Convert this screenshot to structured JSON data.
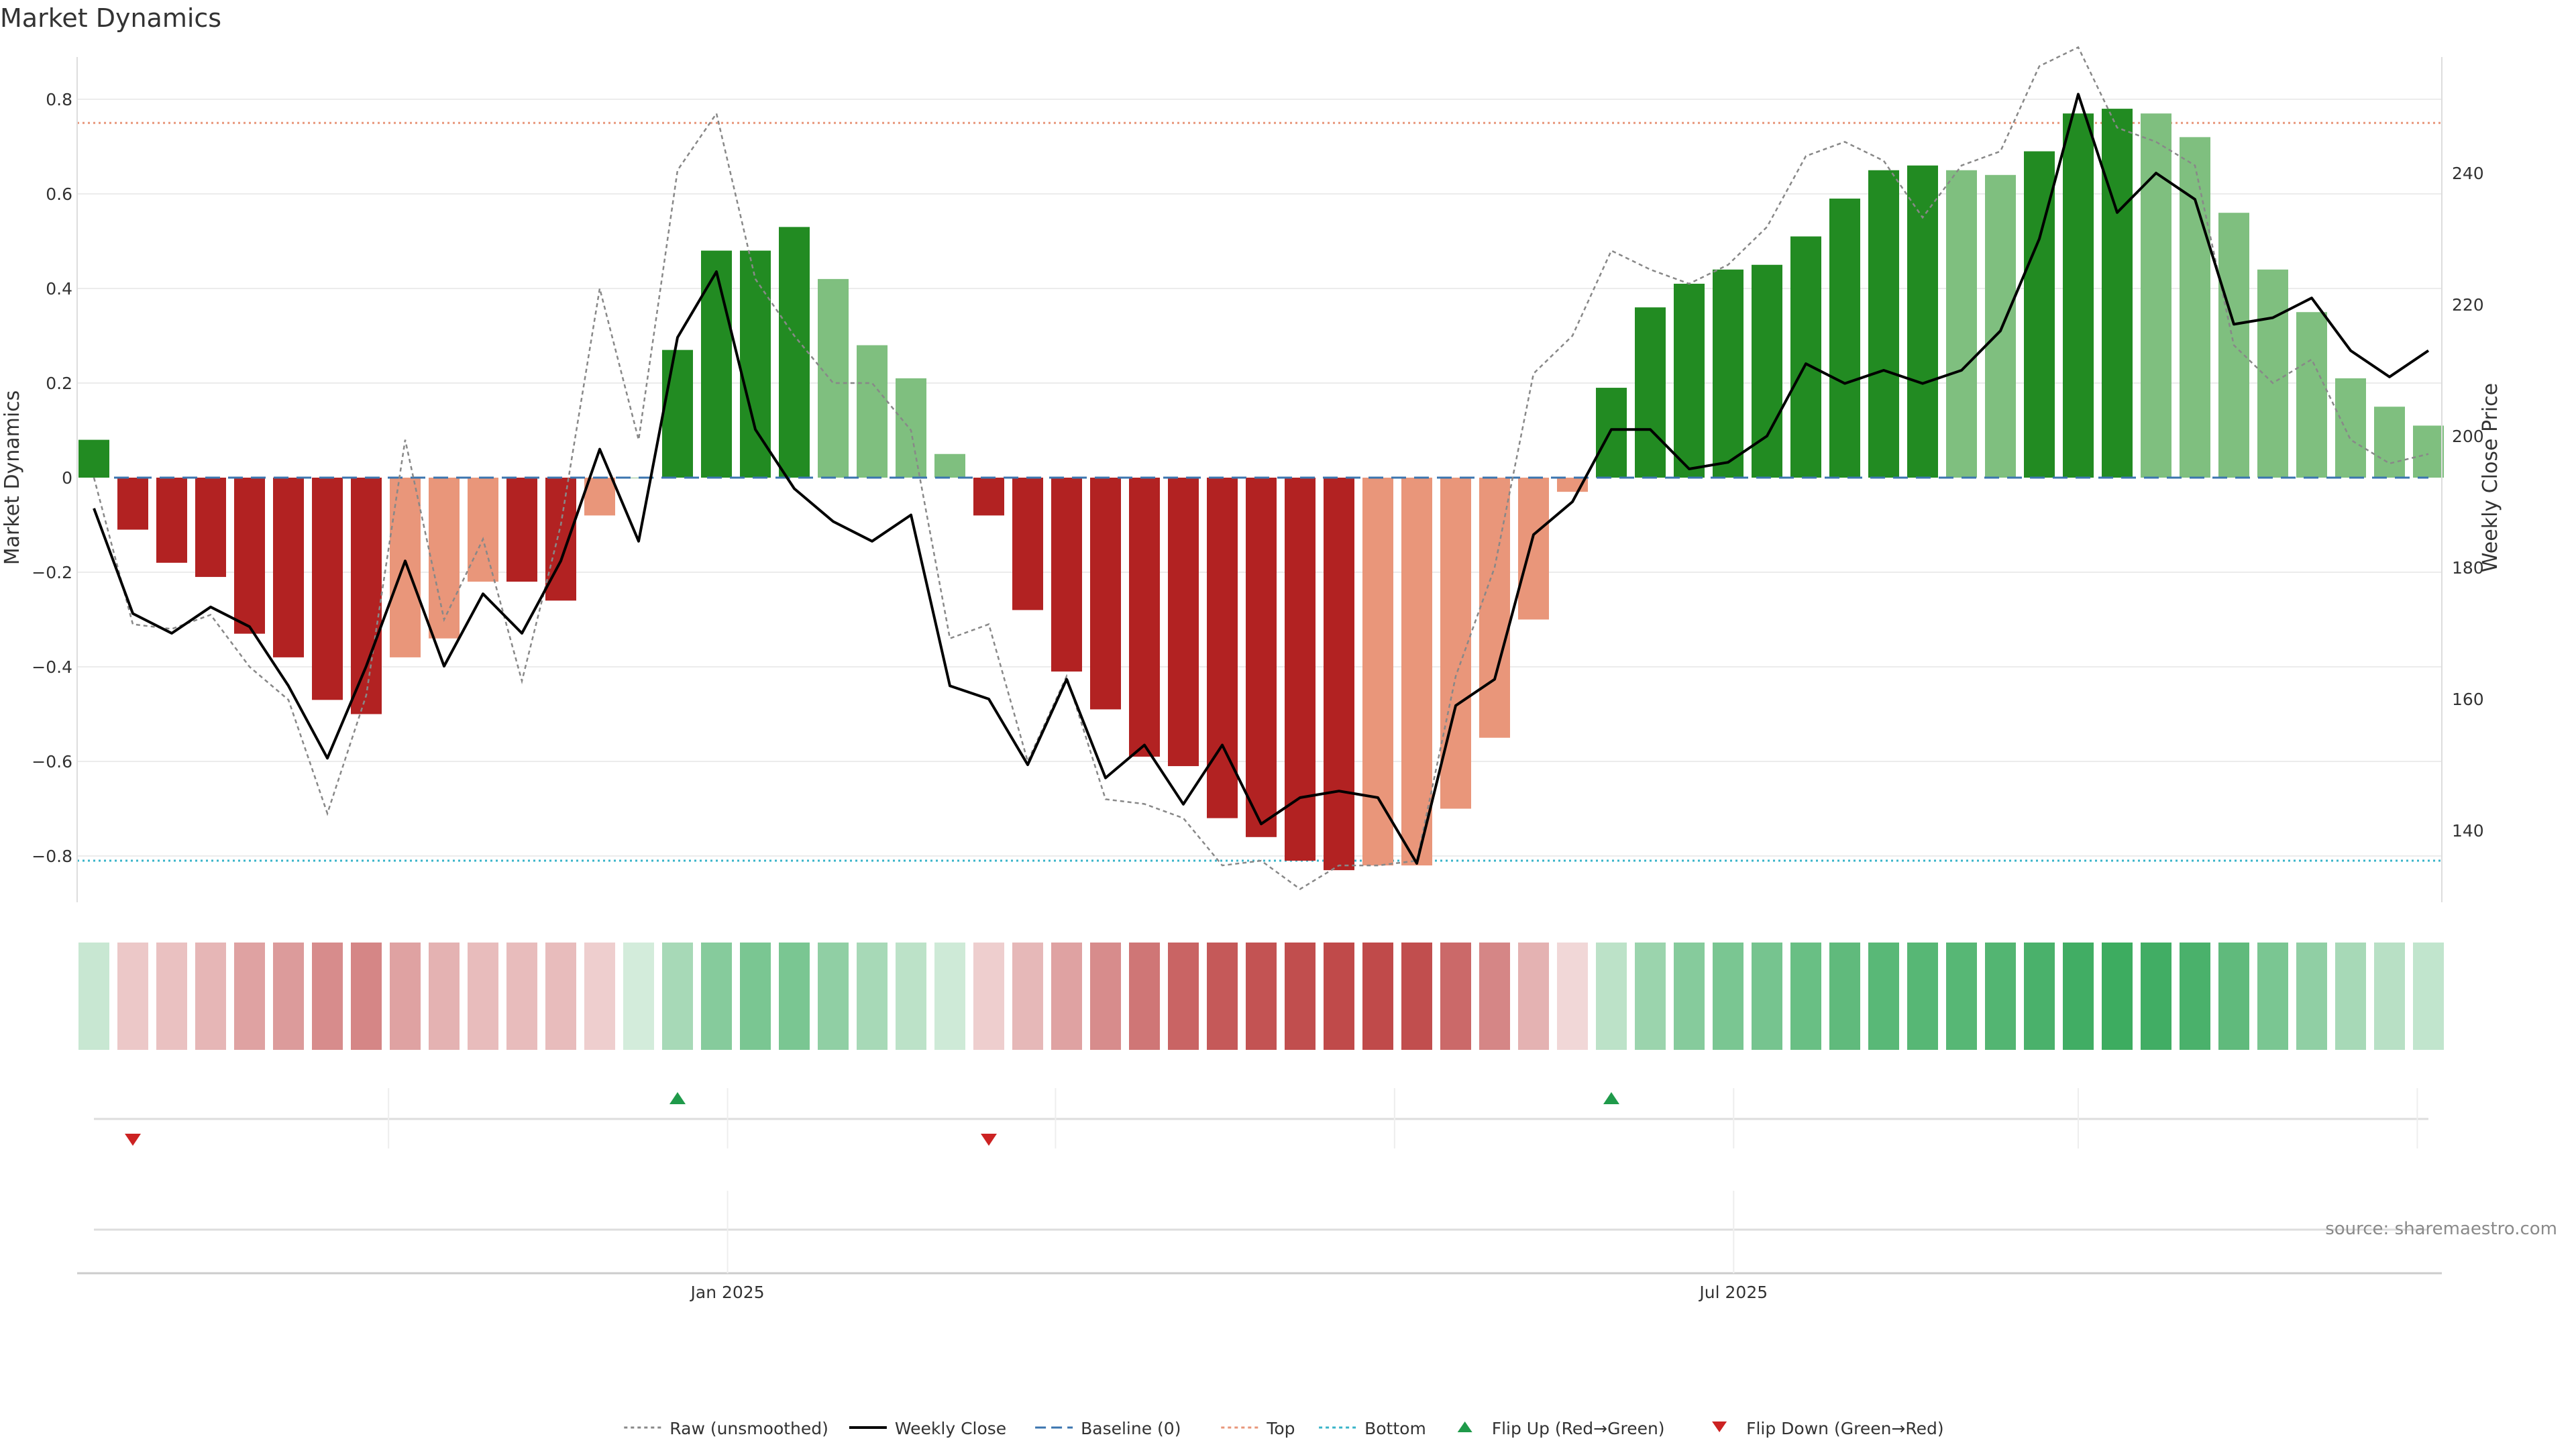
{
  "chart_data": {
    "type": "bar",
    "title": "Market Dynamics",
    "ylabel_left": "Market Dynamics",
    "ylabel_right": "Weekly Close Price",
    "ylim_left": [
      -0.9,
      0.9
    ],
    "ylim_right": [
      132,
      256
    ],
    "yticks_left": [
      -0.8,
      -0.6,
      -0.4,
      -0.2,
      0,
      0.2,
      0.4,
      0.6,
      0.8
    ],
    "yticks_left_labels": [
      "−0.8",
      "−0.6",
      "−0.4",
      "−0.2",
      "0",
      "0.2",
      "0.4",
      "0.6",
      "0.8"
    ],
    "yticks_right": [
      140,
      160,
      180,
      200,
      220,
      240
    ],
    "yticks_right_labels": [
      "140",
      "160",
      "180",
      "200",
      "220",
      "240"
    ],
    "x_start": "2024-09-09",
    "x_step_days": 7,
    "xticks": [
      {
        "date": "2025-01-01",
        "label": "Jan 2025"
      },
      {
        "date": "2025-07-01",
        "label": "Jul 2025"
      }
    ],
    "minor_gridlines_dates": [
      "2024-11-01",
      "2025-01-01",
      "2025-03-01",
      "2025-05-01",
      "2025-07-01",
      "2025-09-01",
      "2025-11-01"
    ],
    "top_level": 0.75,
    "bottom_level": -0.81,
    "baseline": 0,
    "dynamics": [
      0.08,
      -0.11,
      -0.18,
      -0.21,
      -0.33,
      -0.38,
      -0.47,
      -0.5,
      -0.38,
      -0.34,
      -0.22,
      -0.22,
      -0.26,
      -0.08,
      0,
      0.27,
      0.48,
      0.48,
      0.53,
      0.42,
      0.28,
      0.21,
      0.05,
      -0.08,
      -0.28,
      -0.41,
      -0.49,
      -0.59,
      -0.61,
      -0.72,
      -0.76,
      -0.81,
      -0.83,
      -0.82,
      -0.82,
      -0.7,
      -0.55,
      -0.3,
      -0.03,
      0.19,
      0.36,
      0.41,
      0.44,
      0.45,
      0.51,
      0.59,
      0.65,
      0.66,
      0.65,
      0.64,
      0.69,
      0.77,
      0.78,
      0.77,
      0.72,
      0.56,
      0.44,
      0.35,
      0.21,
      0.15,
      0.11
    ],
    "bar_shade": [
      "dark",
      "dark",
      "dark",
      "dark",
      "dark",
      "dark",
      "dark",
      "dark",
      "light",
      "light",
      "light",
      "dark",
      "dark",
      "light",
      "dark",
      "dark",
      "dark",
      "dark",
      "dark",
      "light",
      "light",
      "light",
      "light",
      "dark",
      "dark",
      "dark",
      "dark",
      "dark",
      "dark",
      "dark",
      "dark",
      "dark",
      "dark",
      "light",
      "light",
      "light",
      "light",
      "light",
      "light",
      "dark",
      "dark",
      "dark",
      "dark",
      "dark",
      "dark",
      "dark",
      "dark",
      "dark",
      "light",
      "light",
      "dark",
      "dark",
      "dark",
      "light",
      "light",
      "light",
      "light",
      "light",
      "light",
      "light",
      "light"
    ],
    "raw": [
      0.0,
      -0.31,
      -0.32,
      -0.29,
      -0.4,
      -0.47,
      -0.71,
      -0.46,
      0.08,
      -0.3,
      -0.13,
      -0.43,
      -0.1,
      0.4,
      0.08,
      0.65,
      0.77,
      0.42,
      0.3,
      0.2,
      0.2,
      0.1,
      -0.34,
      -0.31,
      -0.6,
      -0.42,
      -0.68,
      -0.69,
      -0.72,
      -0.82,
      -0.81,
      -0.87,
      -0.82,
      -0.82,
      -0.81,
      -0.42,
      -0.19,
      0.22,
      0.3,
      0.48,
      0.44,
      0.41,
      0.45,
      0.53,
      0.68,
      0.71,
      0.67,
      0.55,
      0.66,
      0.69,
      0.87,
      0.91,
      0.74,
      0.71,
      0.66,
      0.28,
      0.2,
      0.25,
      0.08,
      0.03,
      0.05
    ],
    "weekly_close": [
      189,
      173,
      170,
      174,
      171,
      162,
      151,
      165,
      181,
      165,
      176,
      170,
      181,
      198,
      184,
      215,
      225,
      201,
      192,
      187,
      184,
      188,
      162,
      160,
      150,
      163,
      148,
      153,
      144,
      153,
      141,
      145,
      146,
      145,
      135,
      159,
      163,
      185,
      190,
      201,
      201,
      195,
      196,
      200,
      211,
      208,
      210,
      208,
      210,
      216,
      230,
      252,
      234,
      240,
      236,
      217,
      218,
      221,
      213,
      209,
      213
    ],
    "heat_alpha": [
      0.25,
      0.25,
      0.28,
      0.33,
      0.42,
      0.45,
      0.52,
      0.55,
      0.42,
      0.35,
      0.3,
      0.3,
      0.3,
      0.22,
      0.2,
      0.4,
      0.55,
      0.6,
      0.6,
      0.5,
      0.4,
      0.3,
      0.22,
      0.22,
      0.32,
      0.42,
      0.52,
      0.62,
      0.7,
      0.75,
      0.78,
      0.8,
      0.82,
      0.82,
      0.8,
      0.68,
      0.55,
      0.35,
      0.18,
      0.3,
      0.45,
      0.55,
      0.6,
      0.62,
      0.68,
      0.72,
      0.75,
      0.76,
      0.76,
      0.78,
      0.82,
      0.86,
      0.88,
      0.86,
      0.82,
      0.72,
      0.6,
      0.5,
      0.4,
      0.32,
      0.28
    ],
    "flip_up_indices": [
      15,
      39
    ],
    "flip_down_indices": [
      1,
      23
    ],
    "legend": [
      {
        "label": "Raw (unsmoothed)",
        "kind": "dotted",
        "color": "#888888"
      },
      {
        "label": "Weekly Close",
        "kind": "solid",
        "color": "#000000"
      },
      {
        "label": "Baseline (0)",
        "kind": "dashed",
        "color": "#3b75af"
      },
      {
        "label": "Top",
        "kind": "dotted",
        "color": "#e8967a"
      },
      {
        "label": "Bottom",
        "kind": "dotted",
        "color": "#39b4c9"
      },
      {
        "label": "Flip Up (Red→Green)",
        "kind": "triangle-up",
        "color": "#1f9a4a"
      },
      {
        "label": "Flip Down (Green→Red)",
        "kind": "triangle-down",
        "color": "#cc2222"
      }
    ],
    "grid": true,
    "legend_position": "bottom-center",
    "source": "source: sharemaestro.com",
    "colors": {
      "pos_dark": "#228b22",
      "pos_light": "#7fbf7f",
      "neg_dark": "#b22222",
      "neg_light": "#e9967a",
      "heat_green": "#22a04a",
      "heat_red": "#b22222",
      "raw_line": "#888888",
      "close_line": "#000000",
      "baseline": "#3b75af",
      "top": "#e8967a",
      "bottom": "#39b4c9",
      "flip_up": "#1f9a4a",
      "flip_down": "#cc2222"
    }
  }
}
